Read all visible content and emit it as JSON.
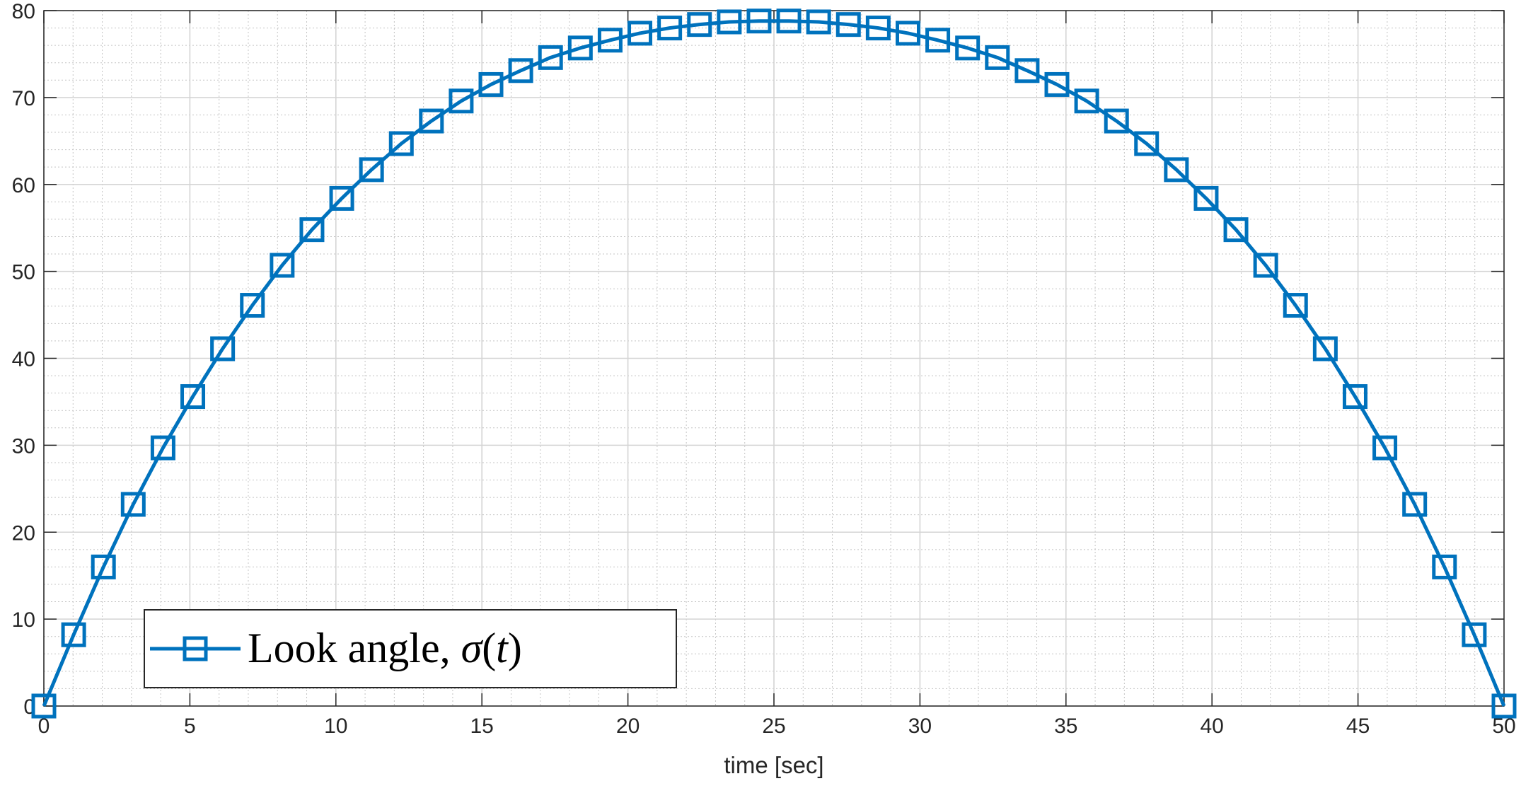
{
  "chart_data": {
    "type": "line",
    "title": "",
    "xlabel": "time [sec]",
    "ylabel": "",
    "xlim": [
      0,
      50
    ],
    "ylim": [
      0,
      80
    ],
    "xticks": [
      0,
      5,
      10,
      15,
      20,
      25,
      30,
      35,
      40,
      45,
      50
    ],
    "yticks": [
      0,
      10,
      20,
      30,
      40,
      50,
      60,
      70,
      80
    ],
    "xtick_labels": [
      "0",
      "5",
      "10",
      "15",
      "20",
      "25",
      "30",
      "35",
      "40",
      "45",
      "50"
    ],
    "ytick_labels": [
      "0",
      "10",
      "20",
      "30",
      "40",
      "50",
      "60",
      "70",
      "80"
    ],
    "grid": true,
    "minor_grid": true,
    "legend_position": "bottom-left",
    "series": [
      {
        "name": "Look angle, σ(t)",
        "legend_parts": {
          "text": "Look angle, ",
          "symbol": "σ",
          "open": "(",
          "var": "t",
          "close": ")"
        },
        "color": "#0072BD",
        "marker": "square",
        "x": [
          0,
          1.02,
          2.04,
          3.06,
          4.08,
          5.1,
          6.12,
          7.14,
          8.16,
          9.18,
          10.2,
          11.22,
          12.24,
          13.27,
          14.29,
          15.31,
          16.33,
          17.35,
          18.37,
          19.39,
          20.41,
          21.43,
          22.45,
          23.47,
          24.49,
          25.51,
          26.53,
          27.55,
          28.57,
          29.59,
          30.61,
          31.63,
          32.65,
          33.67,
          34.69,
          35.71,
          36.73,
          37.76,
          38.78,
          39.8,
          40.82,
          41.84,
          42.86,
          43.88,
          44.9,
          45.92,
          46.94,
          47.96,
          48.98,
          50
        ],
        "y": [
          0,
          8.2,
          16,
          23.2,
          29.7,
          35.6,
          41.1,
          46.1,
          50.7,
          54.8,
          58.4,
          61.7,
          64.7,
          67.3,
          69.6,
          71.5,
          73.1,
          74.6,
          75.7,
          76.6,
          77.4,
          78,
          78.4,
          78.7,
          78.8,
          78.8,
          78.7,
          78.4,
          78,
          77.4,
          76.6,
          75.7,
          74.6,
          73.1,
          71.5,
          69.6,
          67.3,
          64.7,
          61.7,
          58.4,
          54.8,
          50.7,
          46.1,
          41.1,
          35.6,
          29.7,
          23.2,
          16,
          8.2,
          0
        ]
      }
    ]
  }
}
